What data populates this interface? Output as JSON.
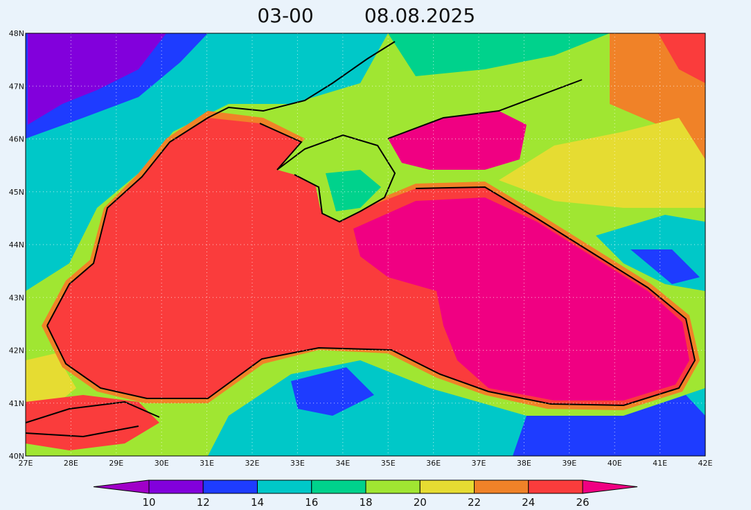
{
  "title": {
    "time": "03-00",
    "date": "08.08.2025"
  },
  "map": {
    "lat_labels": [
      "40N",
      "41N",
      "42N",
      "43N",
      "44N",
      "45N",
      "46N",
      "47N",
      "48N"
    ],
    "lon_labels": [
      "27E",
      "28E",
      "29E",
      "30E",
      "31E",
      "32E",
      "33E",
      "34E",
      "35E",
      "36E",
      "37E",
      "38E",
      "39E",
      "40E",
      "41E",
      "42E"
    ]
  },
  "colorbar": {
    "labels": [
      10,
      12,
      14,
      16,
      18,
      20,
      22,
      24,
      26
    ],
    "colors": [
      "#a000c8",
      "#8200dc",
      "#1e3cff",
      "#00c8c8",
      "#00d28c",
      "#a0e632",
      "#e6dc32",
      "#f08228",
      "#fa3c3c",
      "#f00082"
    ]
  }
}
